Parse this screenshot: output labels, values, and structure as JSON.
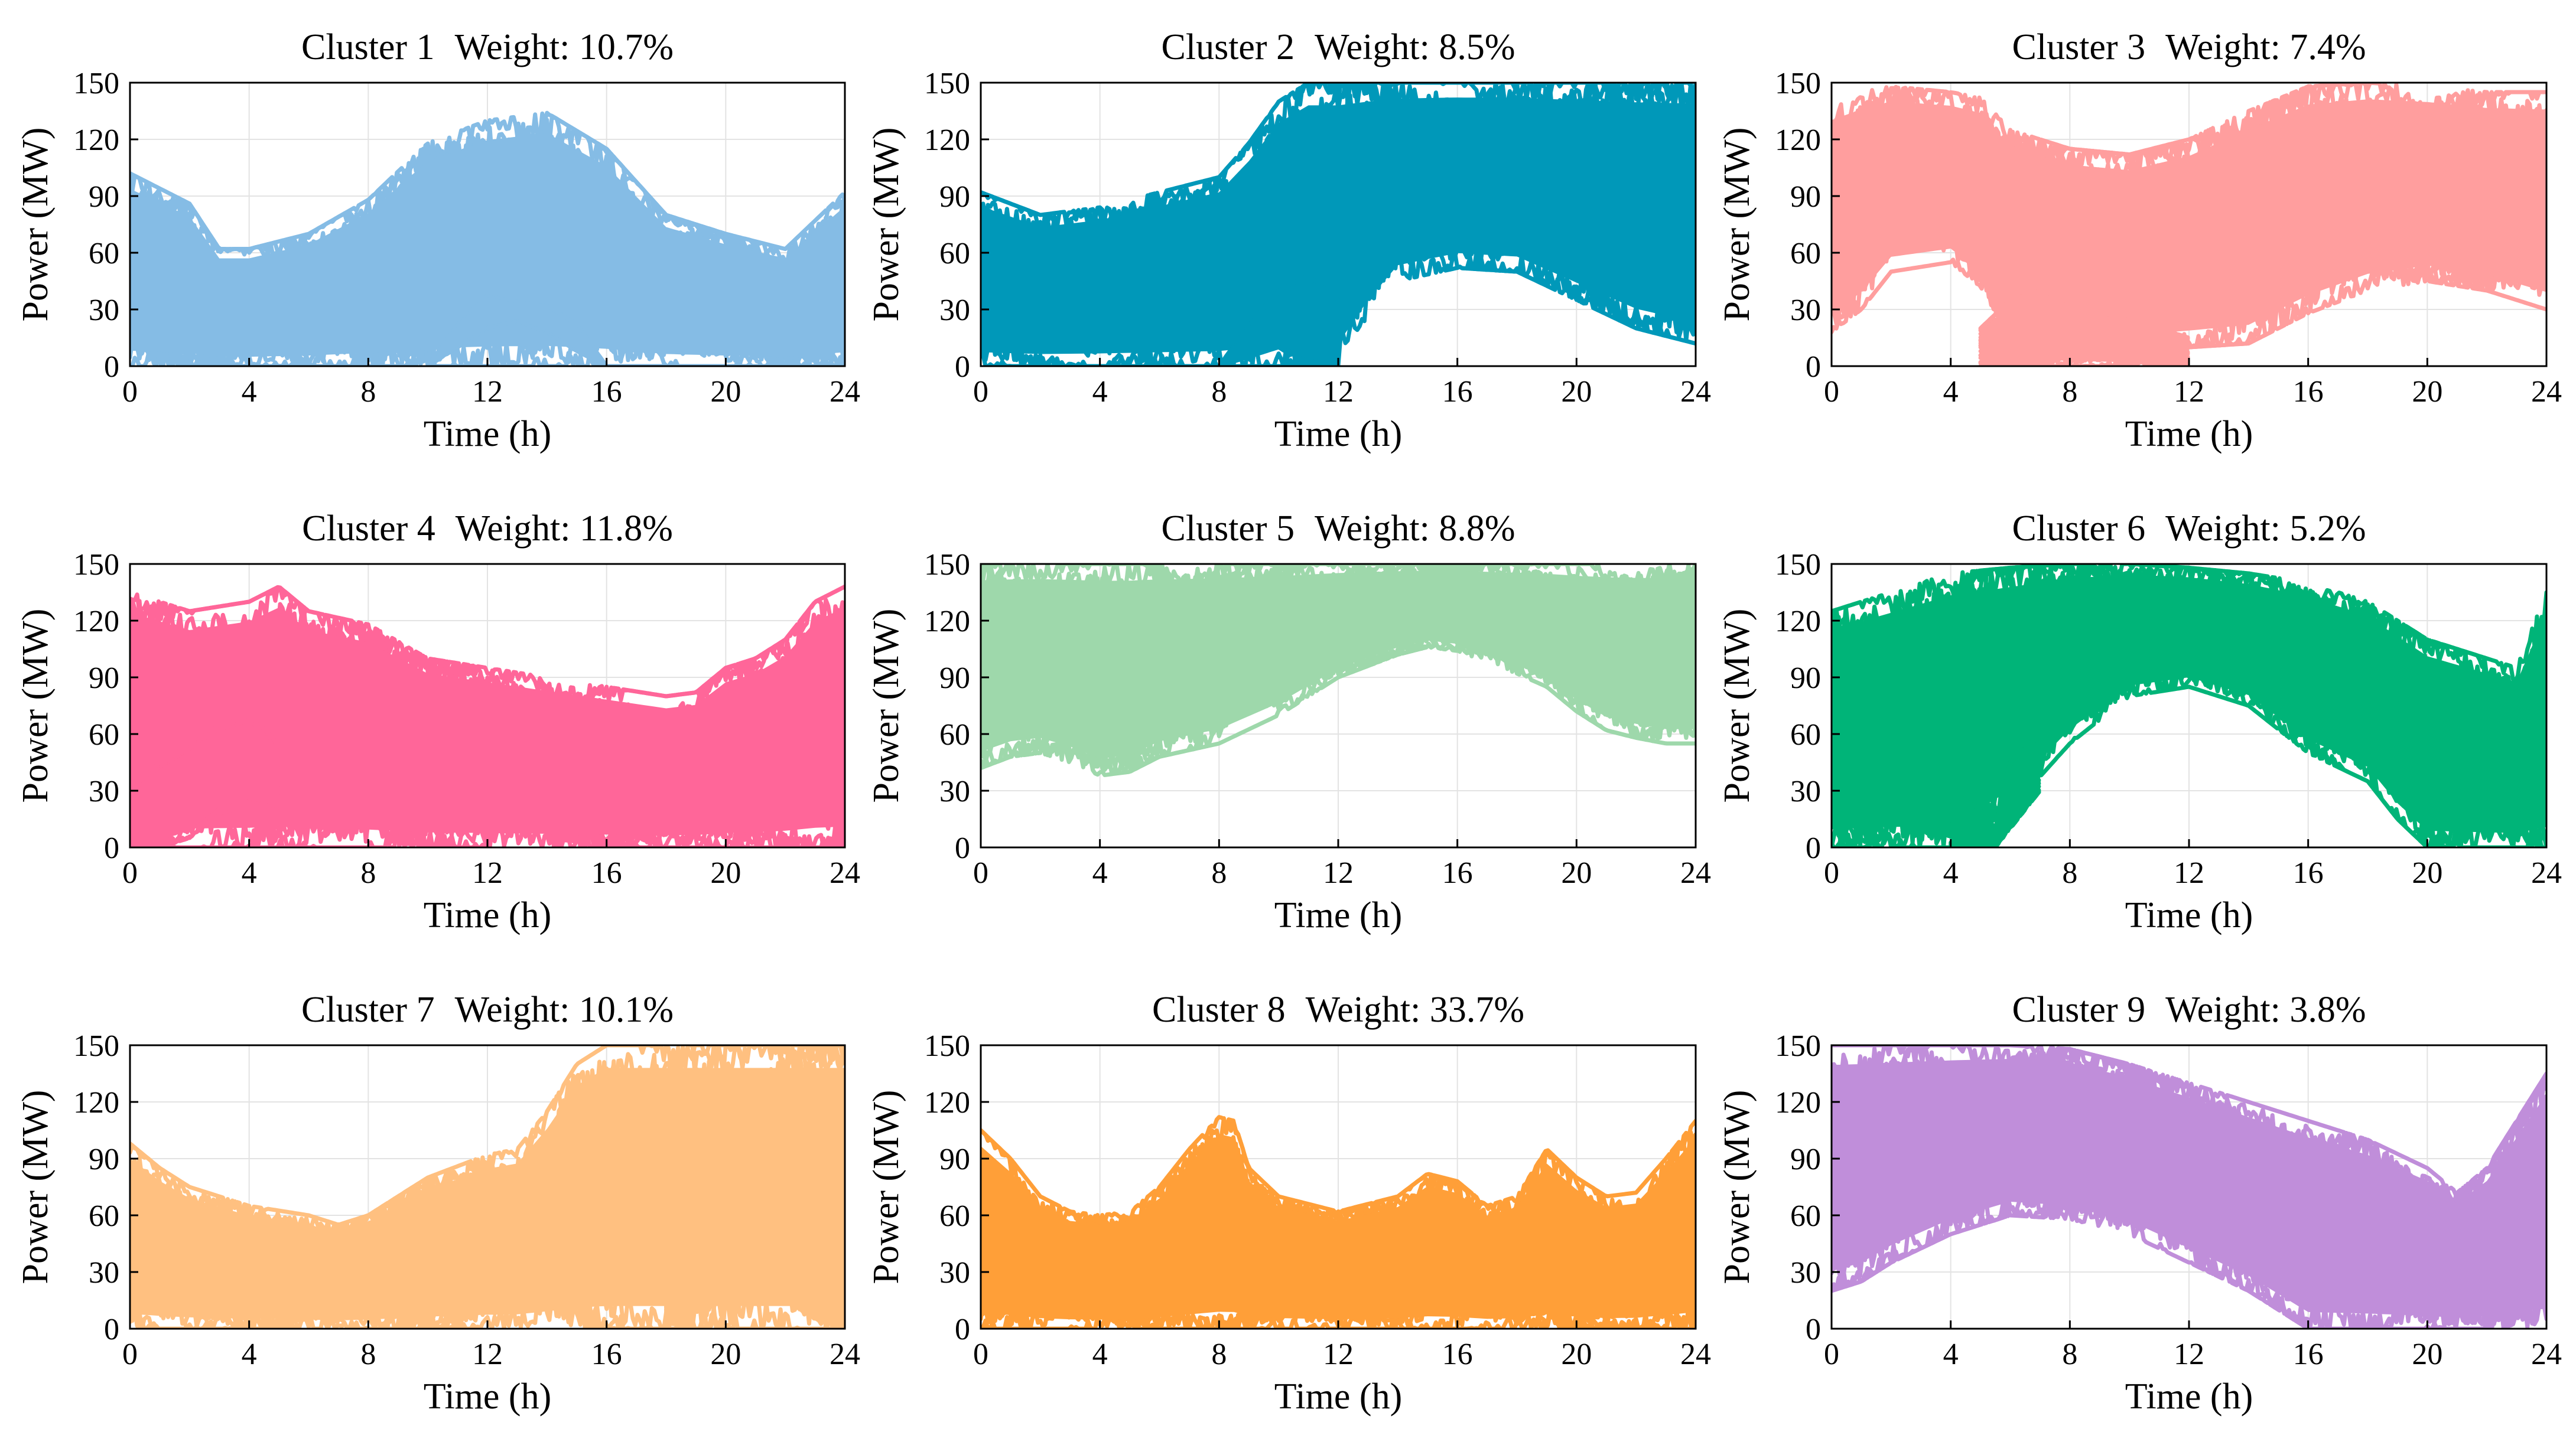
{
  "chart_data": [
    {
      "type": "line",
      "title_parts": [
        "Cluster 1",
        "Weight: 10.7%"
      ],
      "color": "#85BCE5",
      "xlabel": "Time (h)",
      "ylabel": "Power (MW)",
      "xlim": [
        0,
        24
      ],
      "ylim": [
        0,
        150
      ],
      "xticks": [
        0,
        4,
        8,
        12,
        16,
        20,
        24
      ],
      "yticks": [
        0,
        30,
        60,
        90,
        120,
        150
      ],
      "grid": true,
      "bands": [
        {
          "x": [
            0,
            1,
            2,
            3,
            4,
            6,
            8,
            10,
            12,
            14,
            16,
            18,
            20,
            22,
            24
          ],
          "lower": [
            0,
            0,
            0,
            0,
            0,
            0,
            0,
            0,
            0,
            0,
            0,
            0,
            0,
            0,
            0
          ],
          "upper": [
            102,
            94,
            86,
            62,
            62,
            70,
            88,
            118,
            130,
            134,
            115,
            80,
            70,
            62,
            92
          ]
        },
        {
          "x": [
            10,
            11,
            12,
            13,
            14,
            15,
            16
          ],
          "lower": [
            0,
            10,
            20,
            24,
            18,
            8,
            0
          ],
          "upper": [
            0,
            22,
            38,
            34,
            32,
            22,
            0
          ]
        }
      ]
    },
    {
      "type": "line",
      "title_parts": [
        "Cluster 2",
        "Weight: 8.5%"
      ],
      "color": "#0098B9",
      "xlabel": "Time (h)",
      "ylabel": "Power (MW)",
      "xlim": [
        0,
        24
      ],
      "ylim": [
        0,
        150
      ],
      "xticks": [
        0,
        4,
        8,
        12,
        16,
        20,
        24
      ],
      "yticks": [
        0,
        30,
        60,
        90,
        120,
        150
      ],
      "grid": true,
      "bands": [
        {
          "x": [
            0,
            2,
            4,
            6,
            8,
            9,
            10,
            11,
            12,
            13,
            14,
            16,
            18,
            20,
            22,
            24
          ],
          "lower": [
            0,
            0,
            0,
            0,
            0,
            0,
            0,
            0,
            0,
            25,
            45,
            52,
            50,
            35,
            20,
            12
          ],
          "upper": [
            92,
            80,
            84,
            92,
            100,
            118,
            140,
            150,
            150,
            150,
            150,
            150,
            150,
            150,
            150,
            150
          ]
        },
        {
          "x": [
            8,
            9,
            10,
            11,
            12
          ],
          "lower": [
            0,
            5,
            10,
            0,
            0
          ],
          "upper": [
            0,
            22,
            40,
            48,
            35
          ]
        }
      ]
    },
    {
      "type": "line",
      "title_parts": [
        "Cluster 3",
        "Weight: 7.4%"
      ],
      "color": "#FF9E9E",
      "xlabel": "Time (h)",
      "ylabel": "Power (MW)",
      "xlim": [
        0,
        24
      ],
      "ylim": [
        0,
        150
      ],
      "xticks": [
        0,
        4,
        8,
        12,
        16,
        20,
        24
      ],
      "yticks": [
        0,
        30,
        60,
        90,
        120,
        150
      ],
      "grid": true,
      "bands": [
        {
          "x": [
            0,
            1,
            2,
            4,
            5,
            6,
            8,
            10,
            12,
            14,
            16,
            18,
            20,
            22,
            24
          ],
          "lower": [
            18,
            30,
            50,
            55,
            42,
            15,
            10,
            8,
            10,
            12,
            28,
            40,
            45,
            40,
            30
          ],
          "upper": [
            140,
            145,
            148,
            145,
            142,
            125,
            115,
            112,
            120,
            135,
            148,
            150,
            148,
            145,
            145
          ]
        },
        {
          "x": [
            5,
            6,
            7,
            8,
            9,
            10,
            11,
            12
          ],
          "lower": [
            0,
            0,
            0,
            0,
            0,
            0,
            0,
            0
          ],
          "upper": [
            20,
            35,
            40,
            35,
            30,
            25,
            20,
            15
          ]
        }
      ]
    },
    {
      "type": "line",
      "title_parts": [
        "Cluster 4",
        "Weight: 11.8%"
      ],
      "color": "#FF6699",
      "xlabel": "Time (h)",
      "ylabel": "Power (MW)",
      "xlim": [
        0,
        24
      ],
      "ylim": [
        0,
        150
      ],
      "xticks": [
        0,
        4,
        8,
        12,
        16,
        20,
        24
      ],
      "yticks": [
        0,
        30,
        60,
        90,
        120,
        150
      ],
      "grid": true,
      "bands": [
        {
          "x": [
            0,
            2,
            4,
            5,
            6,
            8,
            10,
            12,
            14,
            16,
            18,
            19,
            20,
            21,
            22,
            23,
            24
          ],
          "lower": [
            0,
            0,
            0,
            0,
            0,
            0,
            0,
            0,
            0,
            0,
            0,
            0,
            0,
            0,
            0,
            0,
            0
          ],
          "upper": [
            135,
            125,
            130,
            138,
            125,
            118,
            100,
            95,
            90,
            85,
            80,
            82,
            95,
            100,
            110,
            130,
            138
          ]
        },
        {
          "x": [
            0,
            1,
            2,
            3,
            4,
            5
          ],
          "lower": [
            0,
            0,
            5,
            18,
            22,
            20
          ],
          "upper": [
            30,
            45,
            55,
            65,
            70,
            55
          ]
        }
      ]
    },
    {
      "type": "line",
      "title_parts": [
        "Cluster 5",
        "Weight: 8.8%"
      ],
      "color": "#9ED8AB",
      "xlabel": "Time (h)",
      "ylabel": "Power (MW)",
      "xlim": [
        0,
        24
      ],
      "ylim": [
        0,
        150
      ],
      "xticks": [
        0,
        4,
        8,
        12,
        16,
        20,
        24
      ],
      "yticks": [
        0,
        30,
        60,
        90,
        120,
        150
      ],
      "grid": true,
      "bands": [
        {
          "x": [
            0,
            1,
            2,
            3,
            4,
            5,
            6,
            8,
            10,
            12,
            14,
            15,
            16,
            18,
            19,
            20,
            21,
            22,
            23,
            24
          ],
          "lower": [
            42,
            48,
            50,
            45,
            38,
            40,
            48,
            55,
            70,
            90,
            102,
            106,
            104,
            92,
            85,
            72,
            62,
            58,
            55,
            55
          ],
          "upper": [
            150,
            150,
            150,
            150,
            150,
            150,
            150,
            150,
            150,
            150,
            150,
            150,
            150,
            150,
            150,
            150,
            150,
            150,
            150,
            150
          ]
        }
      ]
    },
    {
      "type": "line",
      "title_parts": [
        "Cluster 6",
        "Weight: 5.2%"
      ],
      "color": "#00B478",
      "xlabel": "Time (h)",
      "ylabel": "Power (MW)",
      "xlim": [
        0,
        24
      ],
      "ylim": [
        0,
        150
      ],
      "xticks": [
        0,
        4,
        8,
        12,
        16,
        20,
        24
      ],
      "yticks": [
        0,
        30,
        60,
        90,
        120,
        150
      ],
      "grid": true,
      "bands": [
        {
          "x": [
            0,
            1,
            2,
            3,
            4,
            6,
            8,
            10,
            12,
            14,
            16,
            18,
            19,
            20,
            22,
            23,
            24
          ],
          "lower": [
            0,
            0,
            0,
            0,
            0,
            20,
            55,
            80,
            85,
            75,
            50,
            35,
            15,
            0,
            0,
            0,
            0
          ],
          "upper": [
            125,
            130,
            135,
            140,
            145,
            148,
            150,
            150,
            148,
            145,
            140,
            130,
            120,
            110,
            100,
            95,
            135
          ]
        },
        {
          "x": [
            4,
            5,
            5.5,
            6,
            7
          ],
          "lower": [
            0,
            0,
            0,
            10,
            30
          ],
          "upper": [
            30,
            20,
            10,
            45,
            60
          ]
        }
      ]
    },
    {
      "type": "line",
      "title_parts": [
        "Cluster 7",
        "Weight: 10.1%"
      ],
      "color": "#FFC080",
      "xlabel": "Time (h)",
      "ylabel": "Power (MW)",
      "xlim": [
        0,
        24
      ],
      "ylim": [
        0,
        150
      ],
      "xticks": [
        0,
        4,
        8,
        12,
        16,
        20,
        24
      ],
      "yticks": [
        0,
        30,
        60,
        90,
        120,
        150
      ],
      "grid": true,
      "bands": [
        {
          "x": [
            0,
            1,
            2,
            4,
            6,
            7,
            8,
            10,
            12,
            13,
            14,
            15,
            16,
            17,
            18,
            19,
            20,
            21,
            22,
            23,
            24
          ],
          "lower": [
            0,
            0,
            0,
            0,
            0,
            0,
            0,
            0,
            0,
            0,
            0,
            0,
            0,
            0,
            0,
            0,
            0,
            0,
            0,
            0,
            0
          ],
          "upper": [
            98,
            85,
            75,
            65,
            60,
            55,
            60,
            80,
            92,
            95,
            115,
            140,
            150,
            150,
            150,
            150,
            150,
            150,
            150,
            150,
            150
          ]
        },
        {
          "x": [
            18,
            19,
            20,
            21,
            22,
            23,
            24
          ],
          "lower": [
            0,
            10,
            22,
            20,
            15,
            5,
            0
          ],
          "upper": [
            15,
            35,
            50,
            45,
            40,
            30,
            20
          ]
        }
      ]
    },
    {
      "type": "line",
      "title_parts": [
        "Cluster 8",
        "Weight: 33.7%"
      ],
      "color": "#FF9F38",
      "xlabel": "Time (h)",
      "ylabel": "Power (MW)",
      "xlim": [
        0,
        24
      ],
      "ylim": [
        0,
        150
      ],
      "xticks": [
        0,
        4,
        8,
        12,
        16,
        20,
        24
      ],
      "yticks": [
        0,
        30,
        60,
        90,
        120,
        150
      ],
      "grid": true,
      "bands": [
        {
          "x": [
            0,
            1,
            2,
            3,
            4,
            5,
            6,
            7,
            8,
            8.5,
            9,
            10,
            12,
            14,
            15,
            16,
            17,
            18,
            19,
            20,
            21,
            22,
            23,
            24
          ],
          "lower": [
            0,
            0,
            0,
            0,
            0,
            0,
            0,
            0,
            0,
            0,
            0,
            0,
            0,
            0,
            0,
            0,
            0,
            0,
            0,
            0,
            0,
            0,
            0,
            0
          ],
          "upper": [
            105,
            90,
            70,
            62,
            60,
            62,
            75,
            95,
            112,
            110,
            85,
            70,
            62,
            70,
            82,
            78,
            65,
            70,
            95,
            80,
            70,
            72,
            90,
            110
          ]
        }
      ]
    },
    {
      "type": "line",
      "title_parts": [
        "Cluster 9",
        "Weight: 3.8%"
      ],
      "color": "#C08EDA",
      "xlabel": "Time (h)",
      "ylabel": "Power (MW)",
      "xlim": [
        0,
        24
      ],
      "ylim": [
        0,
        150
      ],
      "xticks": [
        0,
        4,
        8,
        12,
        16,
        20,
        24
      ],
      "yticks": [
        0,
        30,
        60,
        90,
        120,
        150
      ],
      "grid": true,
      "bands": [
        {
          "x": [
            0,
            1,
            2,
            4,
            6,
            8,
            10,
            12,
            14,
            16,
            18,
            20,
            21,
            22,
            23,
            24
          ],
          "lower": [
            20,
            25,
            35,
            50,
            60,
            58,
            50,
            35,
            20,
            0,
            0,
            0,
            0,
            0,
            0,
            0
          ],
          "upper": [
            150,
            150,
            150,
            150,
            150,
            148,
            140,
            130,
            120,
            110,
            100,
            85,
            72,
            85,
            110,
            135
          ]
        }
      ]
    }
  ]
}
